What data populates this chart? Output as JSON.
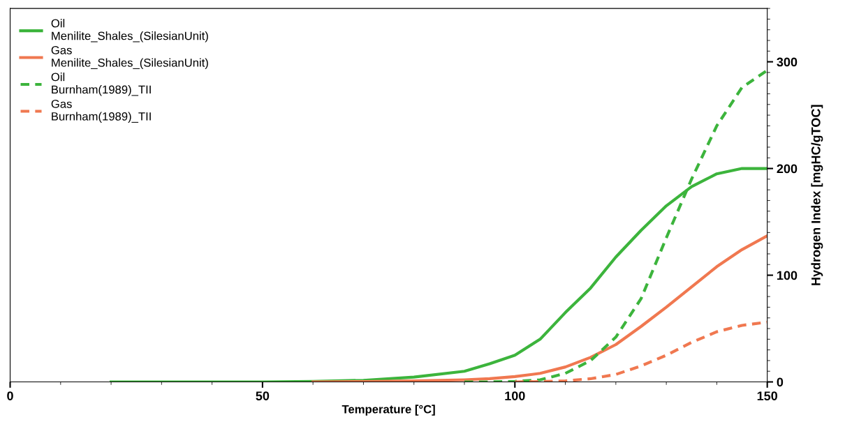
{
  "chart_data": {
    "type": "line",
    "xlabel": "Temperature [°C]",
    "ylabel": "Hydrogen Index [mgHC/gTOC]",
    "xlim": [
      0,
      150
    ],
    "xticks": [
      0,
      50,
      100,
      150
    ],
    "ylim": [
      0,
      350
    ],
    "yticks": [
      0,
      100,
      200,
      300
    ],
    "grid": false,
    "legend": "top left",
    "marker": "none",
    "series": [
      {
        "name": "Oil\nMenilite_Shales_(SilesianUnit)",
        "color": "#3cb43c",
        "line_style": "solid",
        "x": [
          20,
          30,
          40,
          50,
          60,
          70,
          80,
          90,
          95,
          100,
          105,
          110,
          115,
          120,
          125,
          130,
          135,
          140,
          145,
          150
        ],
        "values": [
          0,
          0,
          0,
          0,
          0.5,
          1.5,
          4.5,
          10,
          17,
          25,
          40,
          65,
          88,
          117,
          142,
          165,
          183,
          195,
          200,
          200
        ]
      },
      {
        "name": "Gas\nMenilite_Shales_(SilesianUnit)",
        "color": "#f07850",
        "line_style": "solid",
        "x": [
          60,
          70,
          80,
          90,
          95,
          100,
          105,
          110,
          115,
          120,
          125,
          130,
          135,
          140,
          145,
          150
        ],
        "values": [
          0,
          0.3,
          1,
          2,
          3,
          5,
          8,
          14,
          23,
          35,
          52,
          70,
          89,
          108,
          124,
          137
        ]
      },
      {
        "name": "Oil\nBurnham(1989)_TII",
        "color": "#3cb43c",
        "line_style": "dashed",
        "x": [
          90,
          95,
          100,
          105,
          110,
          115,
          120,
          125,
          130,
          135,
          140,
          145,
          150
        ],
        "values": [
          0,
          0,
          0.5,
          2,
          8,
          20,
          42,
          78,
          135,
          190,
          240,
          276,
          292
        ]
      },
      {
        "name": "Gas\nBurnham(1989)_TII",
        "color": "#f07850",
        "line_style": "dashed",
        "x": [
          100,
          105,
          110,
          115,
          120,
          125,
          130,
          135,
          140,
          145,
          150
        ],
        "values": [
          0,
          0.3,
          1,
          3,
          7,
          15,
          25,
          37,
          47,
          53,
          56
        ]
      }
    ]
  }
}
